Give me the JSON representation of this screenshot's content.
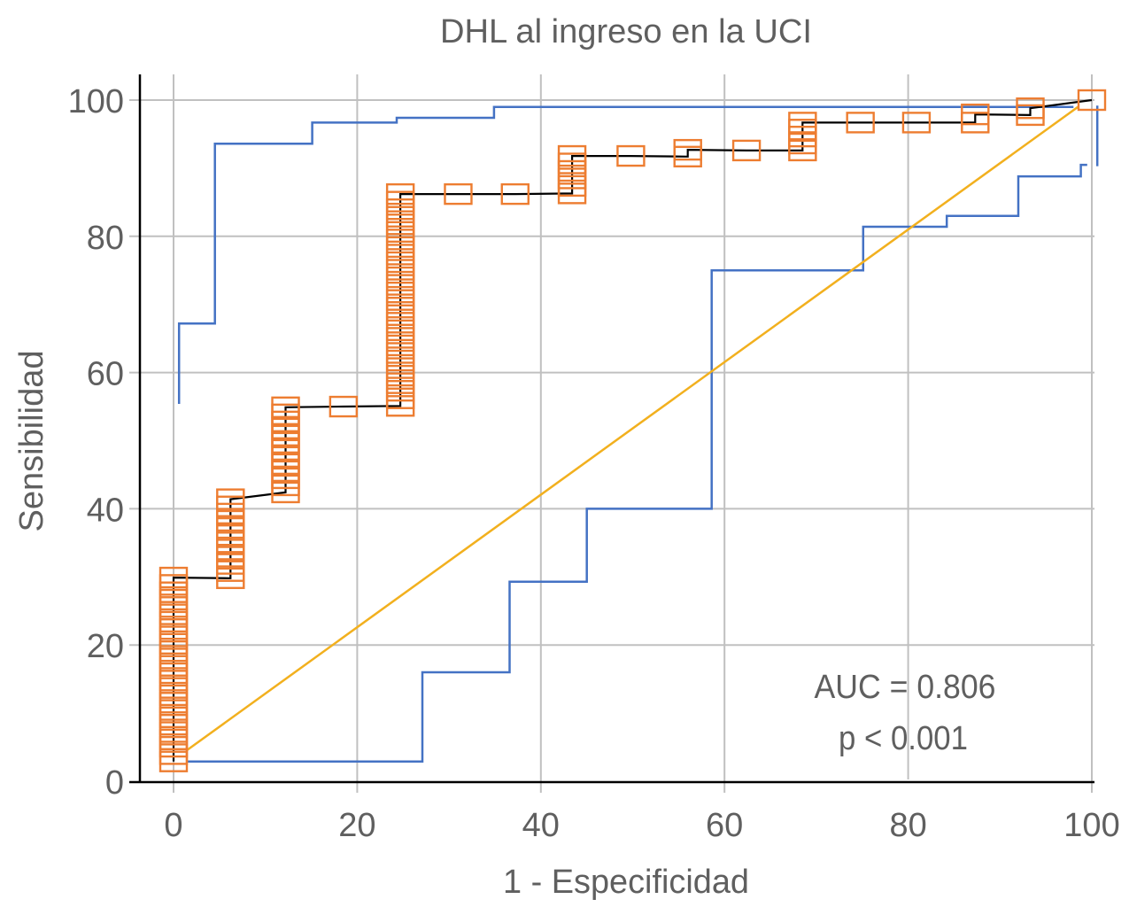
{
  "chart_data": {
    "type": "line",
    "title": "DHL al ingreso en la UCI",
    "xlabel": "1 - Especificidad",
    "ylabel": "Sensibilidad",
    "xlim": [
      0,
      100
    ],
    "ylim": [
      0,
      100
    ],
    "x_ticks": [
      "0",
      "20",
      "40",
      "60",
      "80",
      "100"
    ],
    "y_ticks": [
      "0",
      "20",
      "40",
      "60",
      "80",
      "100"
    ],
    "x_tick_values": [
      0,
      20,
      40,
      60,
      80,
      100
    ],
    "y_tick_values": [
      0,
      20,
      40,
      60,
      80,
      100
    ],
    "grid": true,
    "colors": {
      "roc": "#ED7D31",
      "roc_line": "#000000",
      "ci": "#4472C4",
      "reference": "#F2B01E",
      "grid": "#C0C0C0",
      "text": "#5f5f5f"
    },
    "annotations": [
      "AUC = 0.806",
      "p < 0.001"
    ],
    "series": [
      {
        "name": "ROC",
        "style": "step-markers",
        "points_columns": [
          {
            "x": 0.0,
            "y_from": 2.9,
            "y_to": 29.9,
            "count": 26
          },
          {
            "x": 6.2,
            "y_from": 29.8,
            "y_to": 41.4,
            "count": 12
          },
          {
            "x": 12.2,
            "y_from": 42.4,
            "y_to": 54.9,
            "count": 13
          },
          {
            "x": 18.5,
            "y_from": 55.0,
            "y_to": 55.0,
            "count": 1
          },
          {
            "x": 24.7,
            "y_from": 55.1,
            "y_to": 86.2,
            "count": 29
          },
          {
            "x": 31.0,
            "y_from": 86.2,
            "y_to": 86.2,
            "count": 1
          },
          {
            "x": 37.2,
            "y_from": 86.2,
            "y_to": 86.2,
            "count": 1
          },
          {
            "x": 43.4,
            "y_from": 86.3,
            "y_to": 91.8,
            "count": 6
          },
          {
            "x": 49.8,
            "y_from": 91.8,
            "y_to": 91.8,
            "count": 1
          },
          {
            "x": 56.0,
            "y_from": 91.7,
            "y_to": 92.7,
            "count": 2
          },
          {
            "x": 62.4,
            "y_from": 92.6,
            "y_to": 92.6,
            "count": 1
          },
          {
            "x": 68.5,
            "y_from": 92.6,
            "y_to": 96.7,
            "count": 5
          },
          {
            "x": 74.8,
            "y_from": 96.7,
            "y_to": 96.7,
            "count": 1
          },
          {
            "x": 80.9,
            "y_from": 96.7,
            "y_to": 96.7,
            "count": 1
          },
          {
            "x": 87.3,
            "y_from": 96.7,
            "y_to": 97.9,
            "count": 2
          },
          {
            "x": 93.3,
            "y_from": 97.8,
            "y_to": 98.8,
            "count": 2
          },
          {
            "x": 100.0,
            "y_from": 100.0,
            "y_to": 100.0,
            "count": 1
          }
        ]
      },
      {
        "name": "IC superior",
        "style": "step",
        "x": [
          0.6,
          0.6,
          4.5,
          4.5,
          15.1,
          15.1,
          24.3,
          24.3,
          34.9,
          34.9,
          98.0
        ],
        "y": [
          55.4,
          67.2,
          67.2,
          93.6,
          93.6,
          96.7,
          96.7,
          97.4,
          97.4,
          99.0,
          99.0
        ]
      },
      {
        "name": "IC inferior",
        "style": "step",
        "x": [
          1.5,
          27.1,
          27.1,
          36.6,
          36.6,
          45.0,
          45.0,
          58.6,
          58.6,
          75.1,
          75.1,
          84.2,
          84.2,
          92.0,
          92.0,
          98.8,
          98.8,
          99.5
        ],
        "y": [
          2.9,
          2.9,
          16.0,
          16.0,
          29.3,
          29.3,
          40.0,
          40.0,
          75.0,
          75.0,
          81.4,
          81.4,
          83.0,
          83.0,
          88.8,
          88.8,
          90.5,
          90.5
        ]
      },
      {
        "name": "IC superior cierre",
        "style": "line",
        "x": [
          100.6,
          100.6
        ],
        "y": [
          99.2,
          90.3
        ]
      },
      {
        "name": "Referencia",
        "style": "line",
        "x": [
          1.5,
          98.5
        ],
        "y": [
          4.6,
          99.0
        ]
      }
    ]
  }
}
